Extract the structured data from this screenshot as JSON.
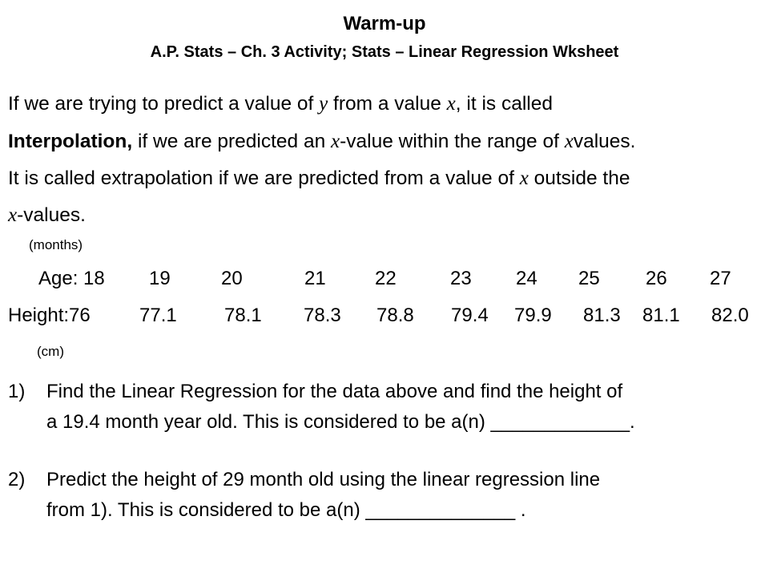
{
  "title": {
    "main": "Warm-up",
    "sub": "A.P. Stats – Ch. 3 Activity; Stats – Linear Regression Wksheet"
  },
  "intro": {
    "line1": {
      "a": "If we are trying to predict a value of ",
      "v1": "y",
      "b": " from a value ",
      "v2": "x",
      "c": ", it is called"
    },
    "line2": {
      "bold": "Interpolation,",
      "a": " if we are predicted an ",
      "v1": "x",
      "b": "-value within the range of ",
      "v2": "x",
      "c": "values."
    },
    "line3": {
      "a": "It is called extrapolation if we are predicted from a value of ",
      "v1": "x",
      "b": " outside the"
    },
    "line4": {
      "v1": "x",
      "a": "-values."
    }
  },
  "table": {
    "age_unit": "(months)",
    "age_label": "Age: 18",
    "ages": [
      "19",
      "20",
      "21",
      "22",
      "23",
      "24",
      "25",
      "26",
      "27"
    ],
    "height_label": "Height:76",
    "heights": [
      "77.1",
      "78.1",
      "78.3",
      "78.8",
      "79.4",
      "79.9",
      "81.3",
      "81.1",
      "82.0"
    ],
    "height_unit": "(cm)"
  },
  "questions": [
    {
      "number": "1)",
      "line1": "Find the Linear Regression  for the data above and find the height of",
      "line2": "a 19.4 month year old. This is considered to be a(n) _____________."
    },
    {
      "number": "2)",
      "line1": "Predict the height of 29 month old using the linear regression line",
      "line2": "from 1). This is considered to be a(n) ______________ ."
    }
  ]
}
